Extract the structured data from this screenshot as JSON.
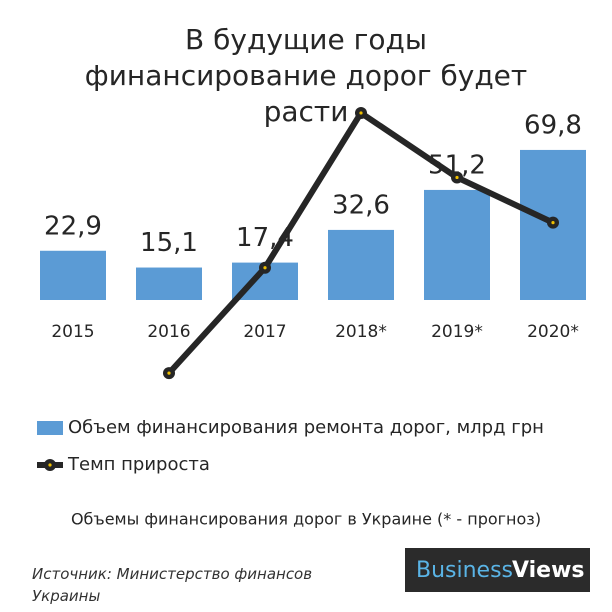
{
  "chart_data": {
    "type": "bar",
    "title": "В будущие годы финансирование дорог будет расти",
    "categories": [
      "2015",
      "2016",
      "2017",
      "2018*",
      "2019*",
      "2020*"
    ],
    "series": [
      {
        "name": "Объем финансирования ремонта дорог, млрд грн",
        "color": "#5b9bd5",
        "type": "bar",
        "values": [
          22.9,
          15.1,
          17.4,
          32.6,
          51.2,
          69.8
        ],
        "value_labels": [
          "22,9",
          "15,1",
          "17,4",
          "32,6",
          "51,2",
          "69,8"
        ]
      },
      {
        "name": "Темп прироста",
        "color": "#262626",
        "type": "line",
        "axis": "y2",
        "values": [
          null,
          -34,
          15,
          87,
          57,
          36
        ]
      }
    ],
    "ylim": [
      -40,
      90
    ],
    "y2lim": [
      -40,
      90
    ],
    "caption": "Объемы финансирования дорог в Украине (* - прогноз)",
    "source": "Источник: Министерство финансов Украины",
    "brand": [
      "Business",
      "Views"
    ]
  }
}
